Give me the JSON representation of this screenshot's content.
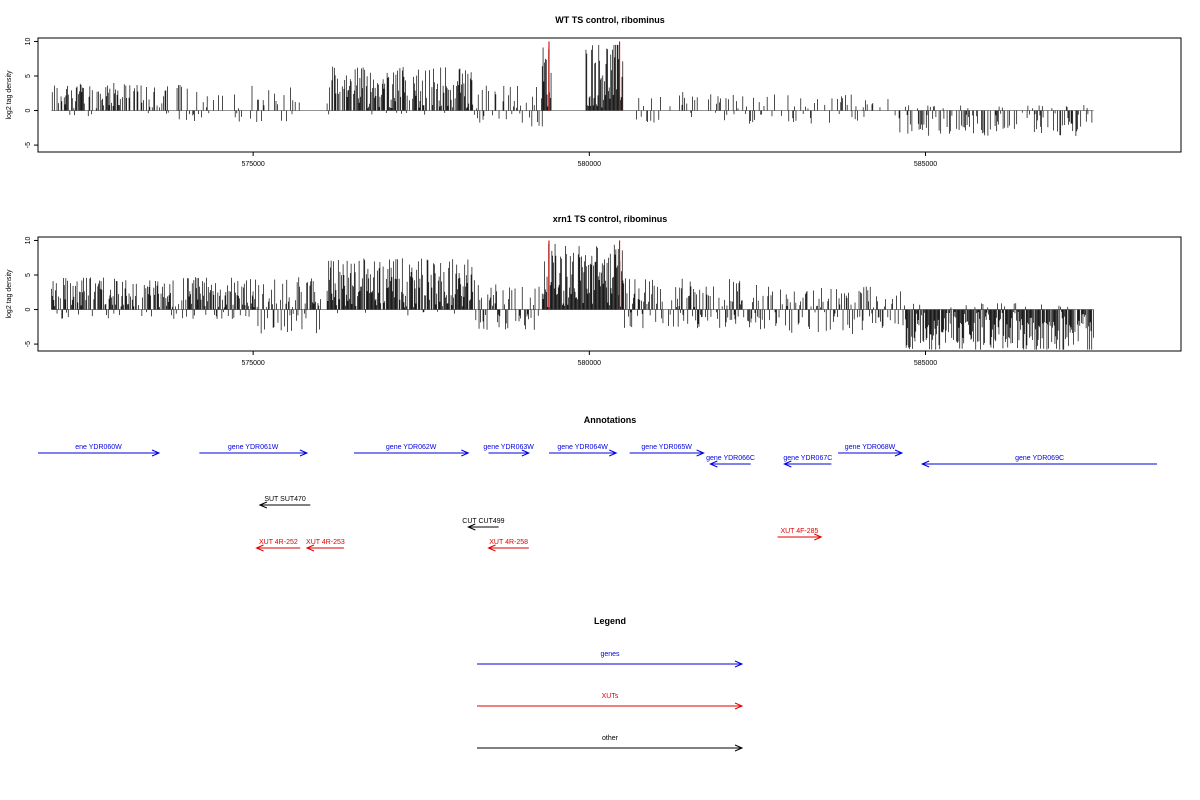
{
  "chart_data": [
    {
      "type": "bar",
      "title": "WT TS control, ribominus",
      "ylabel": "log2 tag density",
      "xlim": [
        571800,
        588800
      ],
      "ylim": [
        -6,
        10.5
      ],
      "x_ticks": [
        575000,
        580000,
        585000
      ],
      "x_tick_labels": [
        "575000",
        "580000",
        "585000"
      ],
      "y_ticks": [
        -5,
        0,
        5,
        10
      ],
      "y_tick_labels": [
        "-5",
        "0",
        "5",
        "10"
      ],
      "highlight_bars": [
        {
          "x": 579400,
          "y": 10,
          "color": "#e00000"
        },
        {
          "x": 580450,
          "y": 10,
          "color": "#e00000"
        }
      ],
      "segments": [
        {
          "start": 572000,
          "end": 573900,
          "pos": 2.2,
          "neg": 0.3,
          "density": 0.55
        },
        {
          "start": 573900,
          "end": 575700,
          "pos": 2.0,
          "neg": 0.8,
          "density": 0.3
        },
        {
          "start": 576100,
          "end": 578300,
          "pos": 3.6,
          "neg": 0.2,
          "density": 0.75
        },
        {
          "start": 578300,
          "end": 579300,
          "pos": 2.0,
          "neg": 1.2,
          "density": 0.4
        },
        {
          "start": 579300,
          "end": 579450,
          "pos": 5.5,
          "neg": 0.0,
          "density": 0.9
        },
        {
          "start": 579950,
          "end": 580500,
          "pos": 6.0,
          "neg": 0.0,
          "density": 1.0
        },
        {
          "start": 580700,
          "end": 582300,
          "pos": 1.4,
          "neg": 0.8,
          "density": 0.3
        },
        {
          "start": 582300,
          "end": 584500,
          "pos": 1.2,
          "neg": 1.0,
          "density": 0.25
        },
        {
          "start": 584500,
          "end": 587500,
          "pos": 0.3,
          "neg": 1.9,
          "density": 0.45
        }
      ]
    },
    {
      "type": "bar",
      "title": "xrn1 TS control, ribominus",
      "ylabel": "log2 tag density",
      "xlim": [
        571800,
        588800
      ],
      "ylim": [
        -6,
        10.5
      ],
      "x_ticks": [
        575000,
        580000,
        585000
      ],
      "x_tick_labels": [
        "575000",
        "580000",
        "585000"
      ],
      "y_ticks": [
        -5,
        0,
        5,
        10
      ],
      "y_tick_labels": [
        "-5",
        "0",
        "5",
        "10"
      ],
      "highlight_bars": [
        {
          "x": 579400,
          "y": 10,
          "color": "#e00000"
        },
        {
          "x": 580450,
          "y": 10,
          "color": "#e00000"
        }
      ],
      "segments": [
        {
          "start": 572000,
          "end": 575000,
          "pos": 2.6,
          "neg": 0.6,
          "density": 0.8
        },
        {
          "start": 575000,
          "end": 576000,
          "pos": 2.6,
          "neg": 1.8,
          "density": 0.7
        },
        {
          "start": 576100,
          "end": 578300,
          "pos": 4.2,
          "neg": 0.3,
          "density": 0.9
        },
        {
          "start": 578300,
          "end": 579300,
          "pos": 2.0,
          "neg": 1.5,
          "density": 0.5
        },
        {
          "start": 579300,
          "end": 580500,
          "pos": 5.5,
          "neg": 0.0,
          "density": 1.0
        },
        {
          "start": 580500,
          "end": 582500,
          "pos": 2.5,
          "neg": 1.4,
          "density": 0.7
        },
        {
          "start": 582500,
          "end": 584700,
          "pos": 1.8,
          "neg": 1.8,
          "density": 0.6
        },
        {
          "start": 584700,
          "end": 587500,
          "pos": 0.4,
          "neg": 3.2,
          "density": 0.95
        }
      ]
    }
  ],
  "annotations": {
    "title": "Annotations",
    "features": [
      {
        "label": "ene YDR060W",
        "type": "gene",
        "start": 571800,
        "end": 573600,
        "dir": "+",
        "row": 0
      },
      {
        "label": "gene YDR061W",
        "type": "gene",
        "start": 574200,
        "end": 575800,
        "dir": "+",
        "row": 0
      },
      {
        "label": "gene YDR062W",
        "type": "gene",
        "start": 576500,
        "end": 578200,
        "dir": "+",
        "row": 0
      },
      {
        "label": "gene YDR063W",
        "type": "gene",
        "start": 578500,
        "end": 579100,
        "dir": "+",
        "row": 0
      },
      {
        "label": "gene YDR064W",
        "type": "gene",
        "start": 579400,
        "end": 580400,
        "dir": "+",
        "row": 0
      },
      {
        "label": "gene YDR065W",
        "type": "gene",
        "start": 580600,
        "end": 581700,
        "dir": "+",
        "row": 0
      },
      {
        "label": "gene YDR066C",
        "type": "gene",
        "start": 581800,
        "end": 582400,
        "dir": "-",
        "row": 1
      },
      {
        "label": "gene YDR067C",
        "type": "gene",
        "start": 582900,
        "end": 583600,
        "dir": "-",
        "row": 1
      },
      {
        "label": "gene YDR068W",
        "type": "gene",
        "start": 583700,
        "end": 584650,
        "dir": "+",
        "row": 0
      },
      {
        "label": "gene YDR069C",
        "type": "gene",
        "start": 584950,
        "end": 588800,
        "dir": "-",
        "row": 1
      },
      {
        "label": "SUT SUT470",
        "type": "other",
        "start": 575100,
        "end": 575850,
        "dir": "-",
        "row": 2
      },
      {
        "label": "CUT CUT499",
        "type": "other",
        "start": 578200,
        "end": 578650,
        "dir": "-",
        "row": 3
      },
      {
        "label": "XUT 4F-285",
        "type": "xut",
        "start": 582800,
        "end": 583450,
        "dir": "+",
        "row": 4
      },
      {
        "label": "XUT 4R-252",
        "type": "xut",
        "start": 575050,
        "end": 575700,
        "dir": "-",
        "row": 5
      },
      {
        "label": "XUT 4R-253",
        "type": "xut",
        "start": 575800,
        "end": 576350,
        "dir": "-",
        "row": 5
      },
      {
        "label": "XUT 4R-258",
        "type": "xut",
        "start": 578500,
        "end": 579100,
        "dir": "-",
        "row": 5
      }
    ]
  },
  "legend": {
    "title": "Legend",
    "items": [
      {
        "label": "genes",
        "color": "#0000e0"
      },
      {
        "label": "XUTs",
        "color": "#e00000"
      },
      {
        "label": "other",
        "color": "#000000"
      }
    ]
  },
  "colors": {
    "gene": "#0000e0",
    "xut": "#e00000",
    "other": "#000000",
    "bar": "#000000"
  }
}
